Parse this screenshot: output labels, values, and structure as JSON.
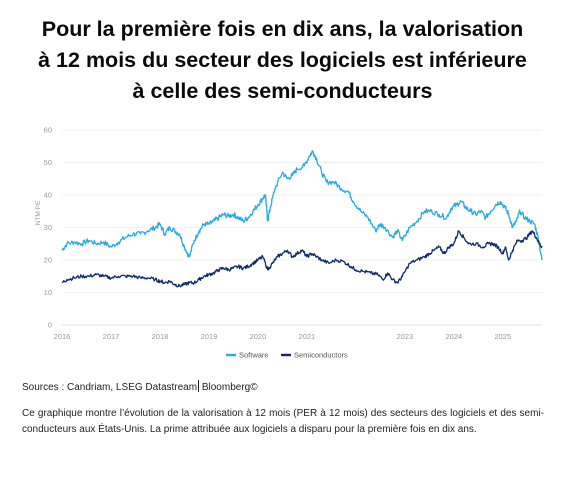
{
  "title": {
    "line1": "Pour la première fois en dix ans, la valorisation",
    "line2": "à 12 mois du secteur des logiciels est inférieure",
    "line3": "à celle des semi-conducteurs"
  },
  "sources": {
    "part1": "Sources : Candriam, LSEG Datastream",
    "part2": " Bloomberg©"
  },
  "description": "Ce graphique montre l’évolution de la valorisation à 12 mois (PER à 12 mois) des secteurs des logiciels et des semi-conducteurs aux États-Unis. La prime attribuée aux logiciels a disparu pour la première fois en dix ans.",
  "colors": {
    "software": "#29a9e1",
    "semiconductors": "#0f2a6b",
    "grid": "#e6e6e6",
    "axis_text": "#9a9a9a"
  },
  "chart_data": {
    "type": "line",
    "title": "",
    "xlabel": "",
    "ylabel": "NTM PE",
    "ylim": [
      0,
      60
    ],
    "yticks": [
      0,
      10,
      20,
      30,
      40,
      50,
      60
    ],
    "xlim": [
      2016.0,
      2025.8
    ],
    "xticks": [
      2016,
      2017,
      2018,
      2019,
      2020,
      2021,
      2023,
      2024,
      2025
    ],
    "xtick_labels": [
      "2016",
      "2017",
      "2018",
      "2019",
      "2020",
      "2021",
      "2023",
      "2024",
      "2025"
    ],
    "grid": "horizontal",
    "legend": "bottom",
    "series": [
      {
        "name": "Software",
        "color": "#29a9e1",
        "points": [
          [
            2016.0,
            23
          ],
          [
            2016.1,
            25
          ],
          [
            2016.25,
            25.5
          ],
          [
            2016.4,
            25
          ],
          [
            2016.55,
            26
          ],
          [
            2016.7,
            25
          ],
          [
            2016.85,
            25.5
          ],
          [
            2017.0,
            24
          ],
          [
            2017.15,
            25.5
          ],
          [
            2017.3,
            27
          ],
          [
            2017.45,
            28
          ],
          [
            2017.6,
            28
          ],
          [
            2017.75,
            29
          ],
          [
            2017.9,
            30
          ],
          [
            2018.0,
            31
          ],
          [
            2018.1,
            28
          ],
          [
            2018.2,
            30
          ],
          [
            2018.3,
            29
          ],
          [
            2018.4,
            28
          ],
          [
            2018.5,
            24
          ],
          [
            2018.6,
            21
          ],
          [
            2018.7,
            26
          ],
          [
            2018.8,
            29
          ],
          [
            2018.9,
            31
          ],
          [
            2019.0,
            31
          ],
          [
            2019.1,
            32
          ],
          [
            2019.2,
            33
          ],
          [
            2019.3,
            34
          ],
          [
            2019.4,
            33.5
          ],
          [
            2019.5,
            34
          ],
          [
            2019.6,
            33
          ],
          [
            2019.7,
            32
          ],
          [
            2019.8,
            33
          ],
          [
            2019.9,
            35
          ],
          [
            2020.0,
            37
          ],
          [
            2020.1,
            39
          ],
          [
            2020.15,
            40
          ],
          [
            2020.2,
            32
          ],
          [
            2020.25,
            36
          ],
          [
            2020.35,
            42
          ],
          [
            2020.5,
            47
          ],
          [
            2020.6,
            45
          ],
          [
            2020.7,
            46
          ],
          [
            2020.8,
            48
          ],
          [
            2020.95,
            49
          ],
          [
            2021.05,
            52
          ],
          [
            2021.12,
            53.5
          ],
          [
            2021.2,
            51
          ],
          [
            2021.3,
            47
          ],
          [
            2021.4,
            44
          ],
          [
            2021.55,
            44
          ],
          [
            2021.7,
            42
          ],
          [
            2021.85,
            41
          ],
          [
            2021.95,
            38
          ],
          [
            2022.1,
            35
          ],
          [
            2022.25,
            33
          ],
          [
            2022.4,
            29
          ],
          [
            2022.5,
            31
          ],
          [
            2022.6,
            30
          ],
          [
            2022.75,
            27
          ],
          [
            2022.85,
            29
          ],
          [
            2022.95,
            26
          ],
          [
            2023.1,
            30
          ],
          [
            2023.25,
            32
          ],
          [
            2023.4,
            35
          ],
          [
            2023.55,
            35
          ],
          [
            2023.7,
            34
          ],
          [
            2023.85,
            33
          ],
          [
            2023.95,
            36
          ],
          [
            2024.05,
            37
          ],
          [
            2024.15,
            38
          ],
          [
            2024.25,
            36
          ],
          [
            2024.35,
            35
          ],
          [
            2024.45,
            34
          ],
          [
            2024.55,
            35
          ],
          [
            2024.65,
            33
          ],
          [
            2024.75,
            35
          ],
          [
            2024.85,
            37
          ],
          [
            2024.95,
            38
          ],
          [
            2025.05,
            36
          ],
          [
            2025.12,
            34
          ],
          [
            2025.2,
            30
          ],
          [
            2025.28,
            32
          ],
          [
            2025.35,
            35
          ],
          [
            2025.45,
            33
          ],
          [
            2025.55,
            32
          ],
          [
            2025.65,
            31
          ],
          [
            2025.72,
            27
          ],
          [
            2025.8,
            20
          ]
        ]
      },
      {
        "name": "Semiconductors",
        "color": "#0f2a6b",
        "points": [
          [
            2016.0,
            13
          ],
          [
            2016.1,
            14
          ],
          [
            2016.25,
            14.5
          ],
          [
            2016.4,
            15
          ],
          [
            2016.55,
            15
          ],
          [
            2016.7,
            15.5
          ],
          [
            2016.85,
            15
          ],
          [
            2017.0,
            14.5
          ],
          [
            2017.15,
            15
          ],
          [
            2017.3,
            15
          ],
          [
            2017.45,
            15
          ],
          [
            2017.6,
            14.5
          ],
          [
            2017.75,
            14.5
          ],
          [
            2017.9,
            14
          ],
          [
            2018.0,
            13.5
          ],
          [
            2018.1,
            13
          ],
          [
            2018.2,
            13.5
          ],
          [
            2018.3,
            12.5
          ],
          [
            2018.4,
            12
          ],
          [
            2018.5,
            12.5
          ],
          [
            2018.6,
            13
          ],
          [
            2018.7,
            13
          ],
          [
            2018.8,
            14
          ],
          [
            2018.9,
            15
          ],
          [
            2019.0,
            15.5
          ],
          [
            2019.1,
            16
          ],
          [
            2019.2,
            17
          ],
          [
            2019.3,
            17.5
          ],
          [
            2019.4,
            17
          ],
          [
            2019.5,
            17.5
          ],
          [
            2019.6,
            18
          ],
          [
            2019.7,
            17.5
          ],
          [
            2019.8,
            18
          ],
          [
            2019.9,
            19
          ],
          [
            2020.0,
            20
          ],
          [
            2020.1,
            21
          ],
          [
            2020.2,
            17
          ],
          [
            2020.3,
            19
          ],
          [
            2020.4,
            21
          ],
          [
            2020.5,
            22
          ],
          [
            2020.6,
            23
          ],
          [
            2020.7,
            21
          ],
          [
            2020.8,
            22
          ],
          [
            2020.9,
            23
          ],
          [
            2021.0,
            21
          ],
          [
            2021.1,
            22
          ],
          [
            2021.2,
            21
          ],
          [
            2021.3,
            20
          ],
          [
            2021.45,
            19
          ],
          [
            2021.6,
            20
          ],
          [
            2021.75,
            19.5
          ],
          [
            2021.9,
            18
          ],
          [
            2022.0,
            17
          ],
          [
            2022.15,
            16.5
          ],
          [
            2022.3,
            16
          ],
          [
            2022.45,
            15.5
          ],
          [
            2022.55,
            14
          ],
          [
            2022.65,
            16
          ],
          [
            2022.75,
            14
          ],
          [
            2022.85,
            13
          ],
          [
            2022.95,
            15
          ],
          [
            2023.1,
            19
          ],
          [
            2023.25,
            20
          ],
          [
            2023.4,
            21
          ],
          [
            2023.5,
            22
          ],
          [
            2023.6,
            23
          ],
          [
            2023.7,
            24
          ],
          [
            2023.8,
            22
          ],
          [
            2023.9,
            24
          ],
          [
            2024.0,
            25
          ],
          [
            2024.1,
            29
          ],
          [
            2024.2,
            27
          ],
          [
            2024.3,
            25
          ],
          [
            2024.45,
            25
          ],
          [
            2024.6,
            24
          ],
          [
            2024.7,
            25
          ],
          [
            2024.8,
            25
          ],
          [
            2024.9,
            24
          ],
          [
            2025.0,
            22
          ],
          [
            2025.05,
            24
          ],
          [
            2025.12,
            20
          ],
          [
            2025.2,
            23
          ],
          [
            2025.3,
            26
          ],
          [
            2025.4,
            26
          ],
          [
            2025.5,
            27
          ],
          [
            2025.6,
            29
          ],
          [
            2025.68,
            27
          ],
          [
            2025.75,
            25
          ],
          [
            2025.8,
            24
          ]
        ]
      }
    ]
  }
}
